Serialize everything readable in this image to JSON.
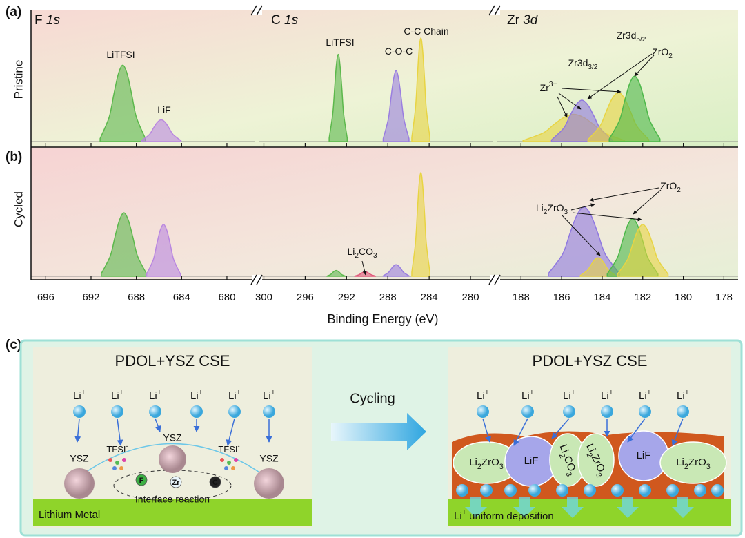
{
  "panel_labels": [
    "(a)",
    "(b)",
    "(c)"
  ],
  "row_labels": [
    "Pristine",
    "Cycled"
  ],
  "x_axis_label": "Binding Energy (eV)",
  "chart_data": [
    {
      "type": "area",
      "title": {
        "parts": [
          "F ",
          "1s"
        ],
        "script": "italic"
      },
      "xlim": [
        697.3,
        677.5
      ],
      "xticks": [
        696,
        692,
        688,
        684,
        680
      ],
      "ylim": [
        0,
        100
      ],
      "rows": [
        {
          "series": [
            {
              "color": "#5cb84c",
              "x": [
                687.2,
                688.0,
                688.4,
                688.8,
                689.2,
                689.6,
                690.0,
                690.4,
                691.2
              ],
              "values": [
                2.8,
                22.4,
                42.7,
                61.6,
                70,
                61.6,
                42.7,
                22.4,
                2.8
              ]
            },
            {
              "color": "#b987e0",
              "x": [
                684.05,
                684.75,
                685.1,
                685.45,
                685.8,
                686.15,
                686.5,
                686.85,
                687.55
              ],
              "values": [
                0.8,
                6.4,
                12.2,
                17.6,
                20,
                17.6,
                12.2,
                6.4,
                0.8
              ]
            }
          ],
          "annotations": [
            {
              "parts": [
                "LiTFSI"
              ]
            },
            {
              "parts": [
                "LiF"
              ]
            }
          ]
        },
        {
          "series": [
            {
              "color": "#5cb84c",
              "x": [
                687.1,
                687.9,
                688.3,
                688.7,
                689.1,
                689.5,
                689.9,
                690.3,
                691.1
              ],
              "values": [
                2.2,
                17.6,
                33.6,
                48.4,
                55,
                48.4,
                33.6,
                17.6,
                2.2
              ]
            },
            {
              "color": "#b987e0",
              "x": [
                684.1,
                684.7,
                685.0,
                685.3,
                685.6,
                685.9,
                686.2,
                686.5,
                687.1
              ],
              "values": [
                1.8,
                14.4,
                27.5,
                39.6,
                45,
                39.6,
                27.5,
                14.4,
                1.8
              ]
            }
          ],
          "annotations": []
        }
      ]
    },
    {
      "type": "area",
      "title": {
        "parts": [
          "C ",
          "1s"
        ],
        "script": "italic"
      },
      "xlim": [
        300.5,
        277.8
      ],
      "xticks": [
        300,
        296,
        292,
        288,
        284,
        280
      ],
      "ylim": [
        0,
        100
      ],
      "rows": [
        {
          "series": [
            {
              "color": "#5cb84c",
              "x": [
                291.93,
                292.28,
                292.45,
                292.63,
                292.8,
                292.98,
                293.15,
                293.33,
                293.68
              ],
              "values": [
                3.2,
                25.6,
                48.8,
                70.4,
                80,
                70.4,
                48.8,
                25.6,
                3.2
              ]
            },
            {
              "color": "#9a7ee0",
              "x": [
                285.95,
                286.45,
                286.7,
                286.95,
                287.2,
                287.45,
                287.7,
                287.95,
                288.45
              ],
              "values": [
                2.6,
                20.8,
                39.7,
                57.2,
                65,
                57.2,
                39.7,
                20.8,
                2.6
              ]
            },
            {
              "color": "#e8d443",
              "x": [
                283.93,
                284.28,
                284.45,
                284.63,
                284.8,
                284.98,
                285.15,
                285.33,
                285.68
              ],
              "values": [
                3.8,
                30.4,
                58,
                83.6,
                95,
                83.6,
                58,
                30.4,
                3.8
              ]
            }
          ],
          "annotations": [
            {
              "parts": [
                "LiTFSI"
              ]
            },
            {
              "parts": [
                "C-O-C"
              ]
            },
            {
              "parts": [
                "C-C Chain"
              ]
            }
          ]
        },
        {
          "series": [
            {
              "color": "#5cb84c",
              "x": [
                292.13,
                292.48,
                292.65,
                292.83,
                293.0,
                293.18,
                293.35,
                293.53,
                293.88
              ],
              "values": [
                0.2,
                1.6,
                3.1,
                4.4,
                5,
                4.4,
                3.1,
                1.6,
                0.2
              ]
            },
            {
              "color": "#e0587a",
              "x": [
                289.2,
                289.6,
                289.8,
                290.0,
                290.2,
                290.4,
                290.6,
                290.8,
                291.2
              ],
              "values": [
                0.2,
                1.3,
                2.4,
                3.5,
                4,
                3.5,
                2.4,
                1.3,
                0.2
              ]
            },
            {
              "color": "#9a7ee0",
              "x": [
                285.95,
                286.45,
                286.7,
                286.95,
                287.2,
                287.45,
                287.7,
                287.95,
                288.45
              ],
              "values": [
                0.4,
                3.2,
                6.1,
                8.8,
                10,
                8.8,
                6.1,
                3.2,
                0.4
              ]
            },
            {
              "color": "#e8d443",
              "x": [
                283.93,
                284.28,
                284.45,
                284.63,
                284.8,
                284.98,
                285.15,
                285.33,
                285.68
              ],
              "values": [
                3.6,
                28.8,
                54.9,
                79.2,
                90,
                79.2,
                54.9,
                28.8,
                3.6
              ]
            }
          ],
          "annotations": [
            {
              "parts": [
                "Li",
                "2",
                "CO",
                "3"
              ],
              "script": "sub"
            }
          ]
        }
      ]
    },
    {
      "type": "area",
      "title": {
        "parts": [
          "Zr ",
          "3d"
        ],
        "script": "italic"
      },
      "xlim": [
        189.2,
        177.3
      ],
      "xticks": [
        188,
        186,
        184,
        182,
        180,
        178
      ],
      "ylim": [
        0,
        100
      ],
      "rows": [
        {
          "series": [
            {
              "color": "#e8d443",
              "x": [
                182.9,
                183.9,
                184.4,
                184.9,
                185.4,
                185.9,
                186.4,
                186.9,
                187.9
              ],
              "values": [
                1,
                8,
                15.3,
                22,
                25,
                22,
                15.3,
                8,
                1
              ]
            },
            {
              "color": "#8f78e0",
              "x": [
                183.5,
                184.1,
                184.4,
                184.7,
                185.0,
                185.3,
                185.6,
                185.9,
                186.5
              ],
              "values": [
                1.5,
                12.2,
                23.2,
                33.4,
                38,
                33.4,
                23.2,
                12.2,
                1.5
              ]
            },
            {
              "color": "#e8d443",
              "x": [
                181.7,
                182.3,
                182.6,
                182.9,
                183.2,
                183.5,
                183.8,
                184.1,
                184.7
              ],
              "values": [
                1.8,
                14.4,
                27.5,
                39.6,
                45,
                39.6,
                27.5,
                14.4,
                1.8
              ]
            },
            {
              "color": "#4db84a",
              "x": [
                181.15,
                181.65,
                181.9,
                182.15,
                182.4,
                182.65,
                182.9,
                183.15,
                183.65
              ],
              "values": [
                2.4,
                19.2,
                36.6,
                52.8,
                60,
                52.8,
                36.6,
                19.2,
                2.4
              ]
            }
          ],
          "annotations": [
            {
              "parts": [
                "Zr3d",
                "3/2"
              ],
              "script": "sub"
            },
            {
              "parts": [
                "Zr3d",
                "5/2"
              ],
              "script": "sub"
            },
            {
              "parts": [
                "ZrO",
                "2"
              ],
              "script": "sub"
            },
            {
              "parts": [
                "Zr",
                "3+"
              ],
              "script": "sup"
            }
          ]
        },
        {
          "series": [
            {
              "color": "#8f78e0",
              "x": [
                183.15,
                183.85,
                184.2,
                184.55,
                184.9,
                185.25,
                185.6,
                185.95,
                186.65
              ],
              "values": [
                2.4,
                19.2,
                36.6,
                52.8,
                60,
                52.8,
                36.6,
                19.2,
                2.4
              ]
            },
            {
              "color": "#e8d443",
              "x": [
                183.33,
                183.68,
                183.85,
                184.03,
                184.2,
                184.38,
                184.55,
                184.73,
                185.08
              ],
              "values": [
                0.6,
                5.1,
                9.8,
                14.1,
                16,
                14.1,
                9.8,
                5.1,
                0.6
              ]
            },
            {
              "color": "#4db84a",
              "x": [
                181.25,
                181.75,
                182.0,
                182.25,
                182.5,
                182.75,
                183.0,
                183.25,
                183.75
              ],
              "values": [
                2,
                16,
                30.5,
                44,
                50,
                44,
                30.5,
                16,
                2
              ]
            },
            {
              "color": "#e8d443",
              "x": [
                180.75,
                181.25,
                181.5,
                181.75,
                182.0,
                182.25,
                182.5,
                182.75,
                183.25
              ],
              "values": [
                1.8,
                14.4,
                27.5,
                39.6,
                45,
                39.6,
                27.5,
                14.4,
                1.8
              ]
            }
          ],
          "annotations": [
            {
              "parts": [
                "Li",
                "2",
                "ZrO",
                "3"
              ],
              "script": "sub"
            },
            {
              "parts": [
                "ZrO",
                "2"
              ],
              "script": "sub"
            }
          ]
        }
      ]
    }
  ],
  "schematic": {
    "left_title": "PDOL+YSZ CSE",
    "right_title": "PDOL+YSZ CSE",
    "arrow_label": "Cycling",
    "left_ions": [
      {
        "parts": [
          "Li",
          "+"
        ],
        "script": "sup"
      },
      {
        "parts": [
          "Li",
          "+"
        ],
        "script": "sup"
      },
      {
        "parts": [
          "Li",
          "+"
        ],
        "script": "sup"
      },
      {
        "parts": [
          "Li",
          "+"
        ],
        "script": "sup"
      },
      {
        "parts": [
          "Li",
          "+"
        ],
        "script": "sup"
      },
      {
        "parts": [
          "Li",
          "+"
        ],
        "script": "sup"
      }
    ],
    "right_ions": [
      {
        "parts": [
          "Li",
          "+"
        ],
        "script": "sup"
      },
      {
        "parts": [
          "Li",
          "+"
        ],
        "script": "sup"
      },
      {
        "parts": [
          "Li",
          "+"
        ],
        "script": "sup"
      },
      {
        "parts": [
          "Li",
          "+"
        ],
        "script": "sup"
      },
      {
        "parts": [
          "Li",
          "+"
        ],
        "script": "sup"
      },
      {
        "parts": [
          "Li",
          "+"
        ],
        "script": "sup"
      }
    ],
    "ysz": [
      "YSZ",
      "YSZ",
      "YSZ"
    ],
    "tfsi": [
      {
        "parts": [
          "TFSI",
          "-"
        ],
        "script": "sup"
      },
      {
        "parts": [
          "TFSI",
          "-"
        ],
        "script": "sup"
      }
    ],
    "elements": [
      "F",
      "Zr",
      "C"
    ],
    "reaction": "Interface reaction",
    "left_substrate": "Lithium Metal",
    "products": [
      {
        "parts": [
          "Li",
          "2",
          "ZrO",
          "3"
        ],
        "script": "sub"
      },
      {
        "parts": [
          "LiF"
        ]
      },
      {
        "parts": [
          "Li",
          "2",
          "CO",
          "3"
        ],
        "script": "sub"
      },
      {
        "parts": [
          "Li",
          "2",
          "ZrO",
          "3"
        ],
        "script": "sub"
      },
      {
        "parts": [
          "LiF"
        ]
      },
      {
        "parts": [
          "Li",
          "2",
          "ZrO",
          "3"
        ],
        "script": "sub"
      }
    ],
    "right_substrate": {
      "parts": [
        "Li",
        "+",
        " uniform deposition"
      ],
      "script": "sup"
    }
  }
}
